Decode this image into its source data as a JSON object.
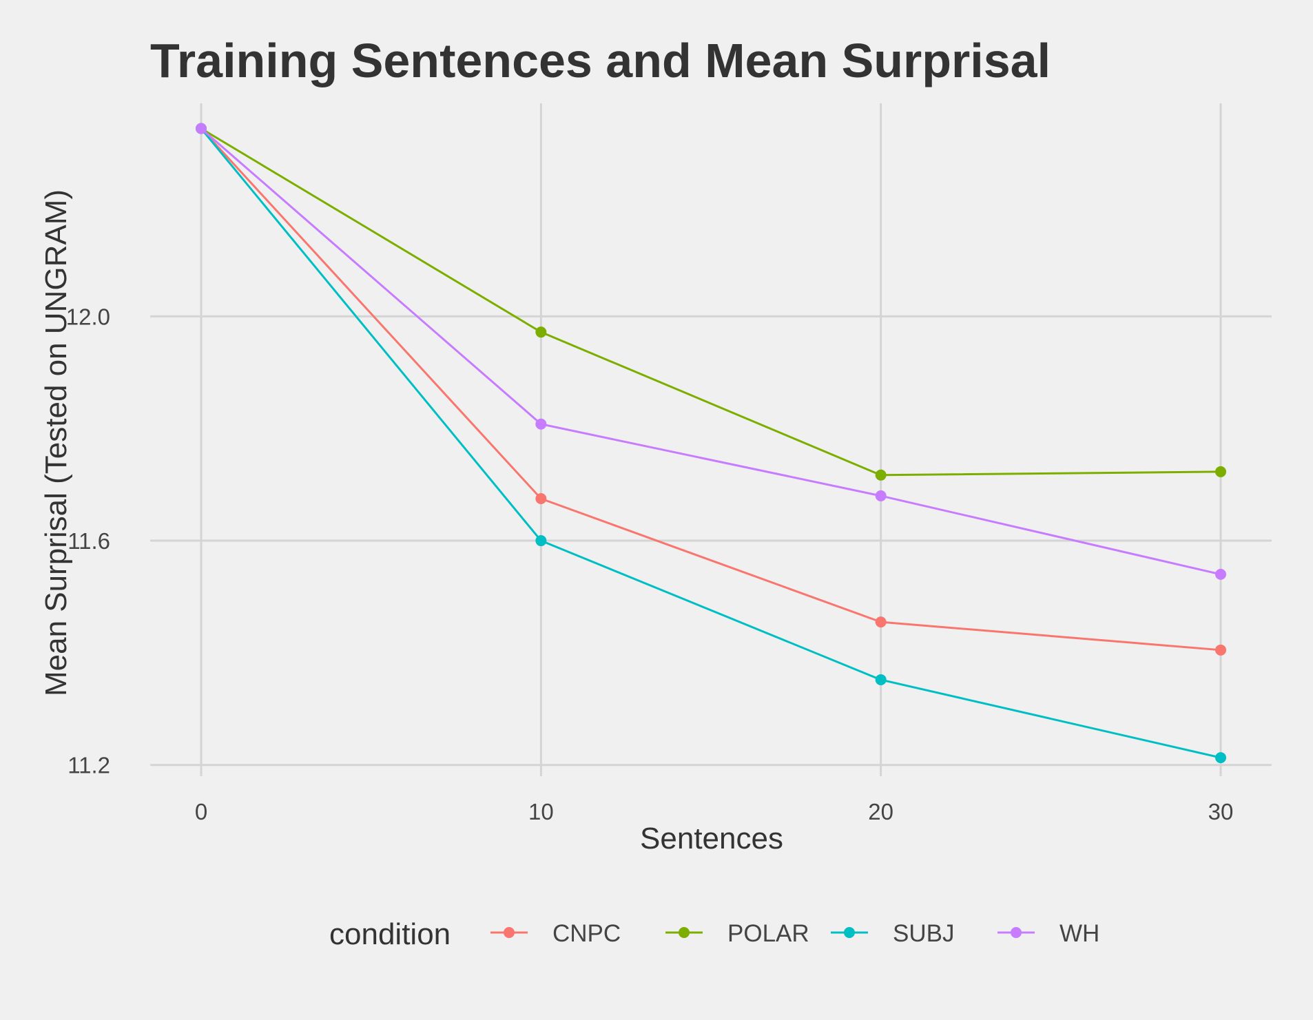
{
  "chart_data": {
    "type": "line",
    "title": "Training Sentences and Mean Surprisal",
    "xlabel": "Sentences",
    "ylabel": "Mean Surprisal (Tested on UNGRAM)",
    "x": [
      0,
      10,
      20,
      30
    ],
    "x_ticks": [
      "0",
      "10",
      "20",
      "30"
    ],
    "y_ticks": [
      "11.2",
      "11.6",
      "12.0"
    ],
    "y_tick_values": [
      11.2,
      11.6,
      12.0
    ],
    "xlim": [
      -1.5,
      31.5
    ],
    "ylim": [
      11.18,
      12.38
    ],
    "grid": true,
    "legend": {
      "title": "condition",
      "position": "bottom"
    },
    "series": [
      {
        "name": "CNPC",
        "color": "#F8766D",
        "values": [
          12.335,
          11.675,
          11.455,
          11.405
        ]
      },
      {
        "name": "POLAR",
        "color": "#7CAE00",
        "values": [
          12.335,
          11.972,
          11.717,
          11.723
        ]
      },
      {
        "name": "SUBJ",
        "color": "#00BFC4",
        "values": [
          12.335,
          11.6,
          11.352,
          11.213
        ]
      },
      {
        "name": "WH",
        "color": "#C77CFF",
        "values": [
          12.335,
          11.808,
          11.68,
          11.54
        ]
      }
    ]
  }
}
